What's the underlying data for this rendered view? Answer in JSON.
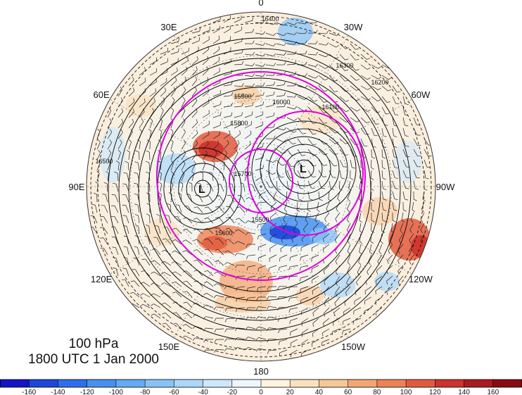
{
  "map": {
    "projection": "north-polar-stereographic",
    "longitude_labels": [
      "0",
      "30W",
      "60W",
      "90W",
      "120W",
      "150W",
      "180",
      "150E",
      "120E",
      "90E",
      "60E",
      "30E"
    ],
    "low_marker": "L",
    "contour_labels": [
      "16400",
      "16300",
      "16200",
      "16100",
      "16000",
      "15900",
      "15800",
      "15700",
      "15600",
      "15500",
      "16500"
    ],
    "overlay_circle_color": "#e000e0",
    "contour_color": "#000000"
  },
  "info": {
    "level": "100 hPa",
    "valid_time": "1800 UTC 1 Jan 2000"
  },
  "colorbar": {
    "labels": [
      "-160",
      "-140",
      "-120",
      "-100",
      "-80",
      "-60",
      "-40",
      "-20",
      "0",
      "20",
      "40",
      "60",
      "80",
      "100",
      "120",
      "140",
      "160"
    ],
    "colors": [
      "#1414c8",
      "#1e46dc",
      "#2d6eeb",
      "#4690f0",
      "#64aaf5",
      "#87c3f8",
      "#aad7fa",
      "#cde8fb",
      "#ecf6fc",
      "#fdf3e0",
      "#fbe0bd",
      "#f8c797",
      "#f4a672",
      "#ee8153",
      "#e25a3e",
      "#cc332c",
      "#aa1a1e",
      "#8a0c12"
    ]
  }
}
